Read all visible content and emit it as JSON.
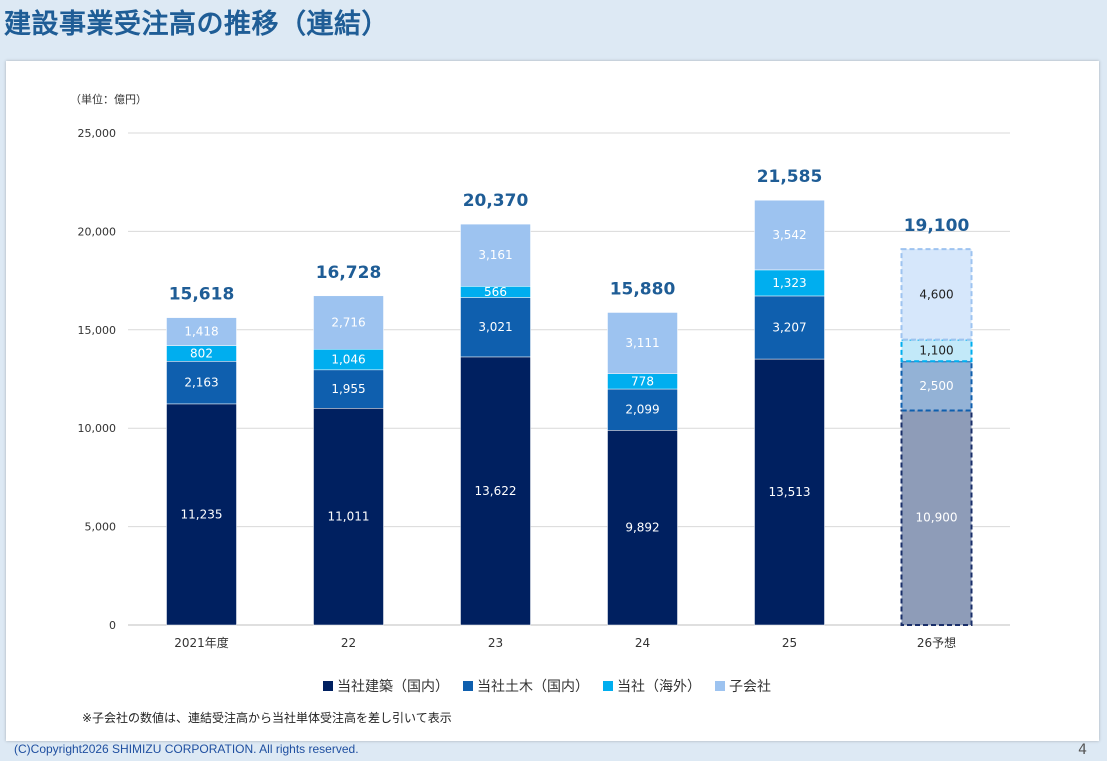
{
  "page_title": "建設事業受注高の推移（連結）",
  "unit_label": "（単位：億円）",
  "note": "※子会社の数値は、連結受注高から当社単体受注高を差し引いて表示",
  "footer": "(C)Copyright2026 SHIMIZU CORPORATION. All rights reserved.",
  "page_number": "4",
  "chart_data": {
    "type": "bar",
    "stacked": true,
    "ylim": [
      0,
      25000
    ],
    "yticks": [
      "0",
      "5,000",
      "10,000",
      "15,000",
      "20,000",
      "25,000"
    ],
    "categories": [
      "2021年度",
      "22",
      "23",
      "24",
      "25",
      "26予想"
    ],
    "totals": [
      "15,618",
      "16,728",
      "20,370",
      "15,880",
      "21,585",
      "19,100"
    ],
    "forecast_index": 5,
    "series": [
      {
        "name": "当社建築（国内）",
        "color": "#002060",
        "labelColor": "#ffffff",
        "values": [
          11235,
          11011,
          13622,
          9892,
          13513,
          10900
        ],
        "labels": [
          "11,235",
          "11,011",
          "13,622",
          "9,892",
          "13,513",
          "10,900"
        ]
      },
      {
        "name": "当社土木（国内）",
        "color": "#0f5fae",
        "labelColor": "#ffffff",
        "values": [
          2163,
          1955,
          3021,
          2099,
          3207,
          2500
        ],
        "labels": [
          "2,163",
          "1,955",
          "3,021",
          "2,099",
          "3,207",
          "2,500"
        ]
      },
      {
        "name": "当社（海外）",
        "color": "#00aeef",
        "labelColor": "#ffffff",
        "values": [
          802,
          1046,
          566,
          778,
          1323,
          1100
        ],
        "labels": [
          "802",
          "1,046",
          "566",
          "778",
          "1,323",
          "1,100"
        ]
      },
      {
        "name": "子会社",
        "color": "#9dc3f0",
        "labelColor": "#ffffff",
        "values": [
          1418,
          2716,
          3161,
          3111,
          3542,
          4600
        ],
        "labels": [
          "1,418",
          "2,716",
          "3,161",
          "3,111",
          "3,542",
          "4,600"
        ]
      }
    ],
    "forecast_colors": [
      "#8e9cb8",
      "#93b2d6",
      "#c2e9f9",
      "#d6e7fb"
    ],
    "forecast_label_colors": [
      "#ffffff",
      "#ffffff",
      "#222222",
      "#222222"
    ],
    "legend_position": "bottom",
    "grid": true
  }
}
